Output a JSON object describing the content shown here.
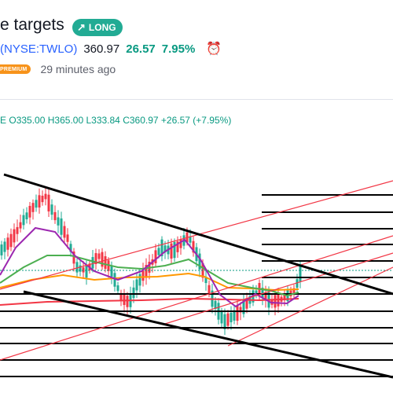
{
  "header": {
    "title": "e targets",
    "badge": {
      "icon": "arrow-up-right-icon",
      "label": "LONG",
      "color": "#22ab94"
    },
    "symbol": "(NYSE:TWLO)",
    "price": "360.97",
    "change": "26.57",
    "change_pct": "7.95%",
    "alarm_icon": "alarm-clock-icon",
    "premium_label": "PREMIUM",
    "time_ago": "29 minutes ago"
  },
  "ohlc": {
    "prefix": "E",
    "open": "O335.00",
    "high": "H365.00",
    "low": "L333.84",
    "close": "C360.97",
    "change": "+26.57 (+7.95%)",
    "color": "#089981"
  },
  "colors": {
    "up": "#22ab94",
    "down": "#f23645",
    "ma_purple": "#9c27b0",
    "ma_green": "#4caf50",
    "ma_orange": "#ff9800",
    "ma_red": "#f23645"
  }
}
